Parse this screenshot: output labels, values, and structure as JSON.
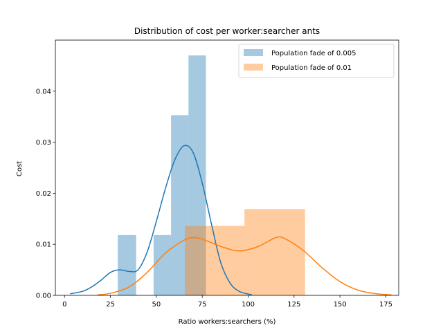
{
  "chart_data": {
    "type": "histogram_kde",
    "title": "Distribution of cost per worker:searcher ants",
    "xlabel": "Ratio workers:searchers (%)",
    "ylabel": "Cost",
    "xlim": [
      -5,
      182
    ],
    "ylim": [
      0,
      0.05
    ],
    "xticks": [
      0,
      25,
      50,
      75,
      100,
      125,
      150,
      175
    ],
    "yticks": [
      0.0,
      0.01,
      0.02,
      0.03,
      0.04
    ],
    "ytick_labels": [
      "0.00",
      "0.01",
      "0.02",
      "0.03",
      "0.04"
    ],
    "legend_position": "top-right",
    "series": [
      {
        "name": "Population fade of 0.005",
        "color": "#1f77b4",
        "bar_alpha": 0.4,
        "bins": [
          {
            "x0": 29,
            "x1": 39,
            "density": 0.0118
          },
          {
            "x0": 39,
            "x1": 48.5,
            "density": 0
          },
          {
            "x0": 48.5,
            "x1": 58,
            "density": 0.0118
          },
          {
            "x0": 58,
            "x1": 67.5,
            "density": 0.0353
          },
          {
            "x0": 67.5,
            "x1": 77,
            "density": 0.047
          }
        ],
        "kde": [
          [
            3,
            0.0003
          ],
          [
            10,
            0.0008
          ],
          [
            15,
            0.0017
          ],
          [
            20,
            0.003
          ],
          [
            25,
            0.0045
          ],
          [
            30,
            0.005
          ],
          [
            35,
            0.0047
          ],
          [
            40,
            0.005
          ],
          [
            45,
            0.0085
          ],
          [
            50,
            0.0145
          ],
          [
            55,
            0.021
          ],
          [
            60,
            0.0265
          ],
          [
            65,
            0.0293
          ],
          [
            70,
            0.028
          ],
          [
            75,
            0.022
          ],
          [
            80,
            0.014
          ],
          [
            85,
            0.0065
          ],
          [
            90,
            0.0025
          ],
          [
            95,
            0.0008
          ],
          [
            102,
            0.0001
          ]
        ]
      },
      {
        "name": "Population fade of 0.01",
        "color": "#ff7f0e",
        "bar_alpha": 0.4,
        "bins": [
          {
            "x0": 65.5,
            "x1": 98,
            "density": 0.0136
          },
          {
            "x0": 98,
            "x1": 131,
            "density": 0.0169
          }
        ],
        "kde": [
          [
            18,
            0.0001
          ],
          [
            25,
            0.0004
          ],
          [
            35,
            0.0016
          ],
          [
            45,
            0.0045
          ],
          [
            55,
            0.0083
          ],
          [
            65,
            0.0108
          ],
          [
            70,
            0.0113
          ],
          [
            75,
            0.011
          ],
          [
            85,
            0.0096
          ],
          [
            95,
            0.0087
          ],
          [
            105,
            0.0095
          ],
          [
            115,
            0.0113
          ],
          [
            120,
            0.0111
          ],
          [
            130,
            0.0088
          ],
          [
            140,
            0.0055
          ],
          [
            150,
            0.0027
          ],
          [
            160,
            0.001
          ],
          [
            170,
            0.0003
          ],
          [
            178,
            0.0001
          ]
        ]
      }
    ]
  }
}
